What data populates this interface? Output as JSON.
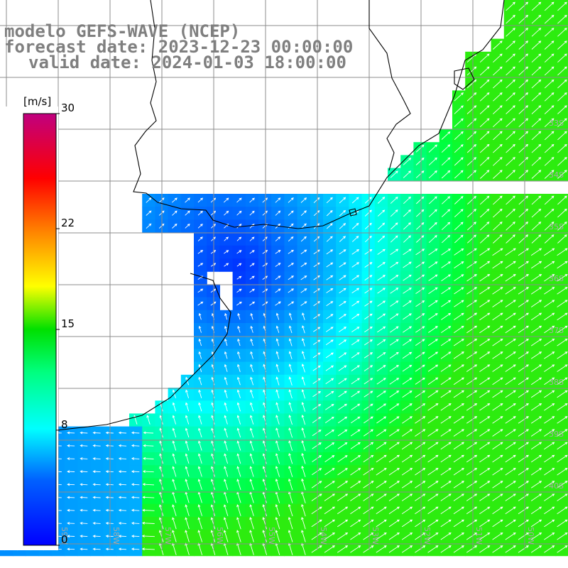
{
  "title": {
    "line1": "modelo GEFS-WAVE (NCEP)",
    "line2": "forecast date: 2023-12-23 00:00:00",
    "line3": "valid date: 2024-01-03 18:00:00"
  },
  "colorbar": {
    "unit": "[m/s]",
    "min": 0,
    "max": 30,
    "ticks": [
      "30",
      "22",
      "15",
      "8",
      "0"
    ],
    "tick_values": [
      30,
      22,
      15,
      8,
      0
    ],
    "colors": [
      "#0000ff",
      "#00a0ff",
      "#00ffff",
      "#00ff00",
      "#ffff00",
      "#ff8000",
      "#ff0000",
      "#c0007f"
    ]
  },
  "lat_labels": [
    "33S",
    "34S",
    "35S",
    "36S",
    "37S",
    "38S",
    "39S",
    "40S"
  ],
  "lon_labels": [
    "60W",
    "59W",
    "58W",
    "57W",
    "56W",
    "55W",
    "54W",
    "53W",
    "52W",
    "51W",
    "50W"
  ],
  "field": {
    "variable": "wind speed",
    "units": "m/s",
    "range_shown": [
      0,
      12
    ]
  }
}
